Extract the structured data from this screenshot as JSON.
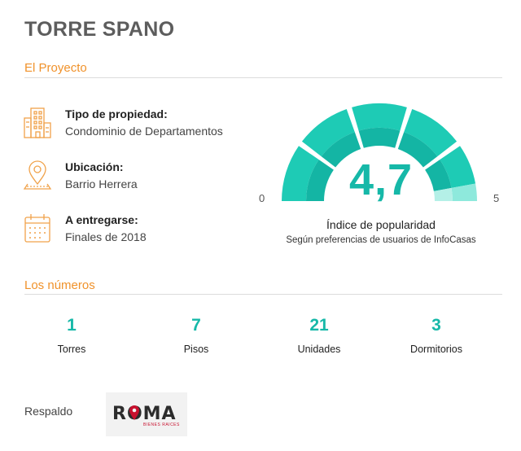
{
  "project_title": "TORRE SPANO",
  "sections": {
    "project": "El Proyecto",
    "numbers": "Los números"
  },
  "info": [
    {
      "icon": "building-icon",
      "label": "Tipo de propiedad:",
      "value": "Condominio de Departamentos"
    },
    {
      "icon": "location-pin-icon",
      "label": "Ubicación:",
      "value": "Barrio Herrera"
    },
    {
      "icon": "calendar-icon",
      "label": "A entregarse:",
      "value": "Finales de 2018"
    }
  ],
  "gauge": {
    "score": "4,7",
    "value": 4.7,
    "min_label": "0",
    "max_label": "5",
    "title": "Índice de popularidad",
    "subtitle": "Según preferencias de usuarios de InfoCasas",
    "colors": {
      "filled": "#1ecbb5",
      "inner": "#14b5a4",
      "empty": "#8ee9dc",
      "empty_inner": "#b4f0e7"
    }
  },
  "stats": [
    {
      "value": "1",
      "caption": "Torres"
    },
    {
      "value": "7",
      "caption": "Pisos"
    },
    {
      "value": "21",
      "caption": "Unidades"
    },
    {
      "value": "3",
      "caption": "Dormitorios"
    }
  ],
  "backing": {
    "label": "Respaldo",
    "logo_text": "ROMA",
    "logo_subtext": "BIENES RAICES"
  },
  "colors": {
    "accent": "#f0922b",
    "teal": "#16b8a8"
  }
}
